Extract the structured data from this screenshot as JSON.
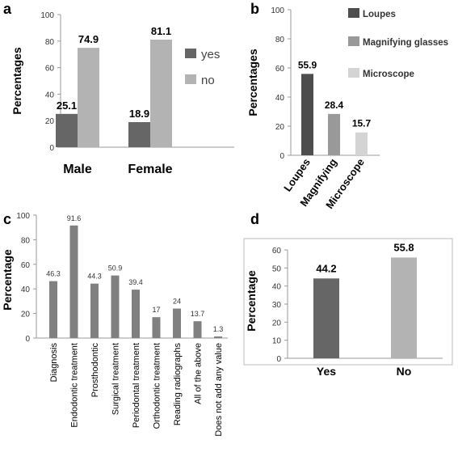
{
  "chart_data": [
    {
      "panel": "a",
      "type": "bar",
      "ylabel": "Percentages",
      "ylim": [
        0,
        100
      ],
      "yticks": [
        0,
        20,
        40,
        60,
        80,
        100
      ],
      "categories": [
        "Male",
        "Female"
      ],
      "series": [
        {
          "name": "yes",
          "values": [
            25.1,
            18.9
          ],
          "color": "#666666"
        },
        {
          "name": "no",
          "values": [
            74.9,
            81.1
          ],
          "color": "#b3b3b3"
        }
      ],
      "legend": "right",
      "grid": false
    },
    {
      "panel": "b",
      "type": "bar",
      "ylabel": "Percentages",
      "ylim": [
        0,
        100
      ],
      "yticks": [
        0,
        20,
        40,
        60,
        80,
        100
      ],
      "categories": [
        "Loupes",
        "Magnifying",
        "Microscope"
      ],
      "values": [
        55.9,
        28.4,
        15.7
      ],
      "colors": [
        "#4d4d4d",
        "#999999",
        "#d4d4d4"
      ],
      "legend_entries": [
        "Loupes",
        "Magnifying glasses",
        "Microscope"
      ],
      "legend": "right",
      "grid": false
    },
    {
      "panel": "c",
      "type": "bar",
      "ylabel": "Percentage",
      "ylim": [
        0,
        100
      ],
      "yticks": [
        0,
        20,
        40,
        60,
        80,
        100
      ],
      "categories": [
        "Diagnosis",
        "Endodontic treatment",
        "Prosthodontic",
        "Surgical treatment",
        "Periodontal treatment",
        "Orthodontic treatment",
        "Reading radiographs",
        "All of the above",
        "Does not add any value"
      ],
      "values": [
        46.3,
        91.6,
        44.3,
        50.9,
        39.4,
        17,
        24,
        13.7,
        1.3
      ],
      "color": "#808080",
      "grid": false
    },
    {
      "panel": "d",
      "type": "bar",
      "ylabel": "Percentage",
      "ylim": [
        0,
        60
      ],
      "yticks": [
        0,
        10,
        20,
        30,
        40,
        50,
        60
      ],
      "categories": [
        "Yes",
        "No"
      ],
      "values": [
        44.2,
        55.8
      ],
      "colors": [
        "#666666",
        "#b3b3b3"
      ],
      "grid": false
    }
  ]
}
